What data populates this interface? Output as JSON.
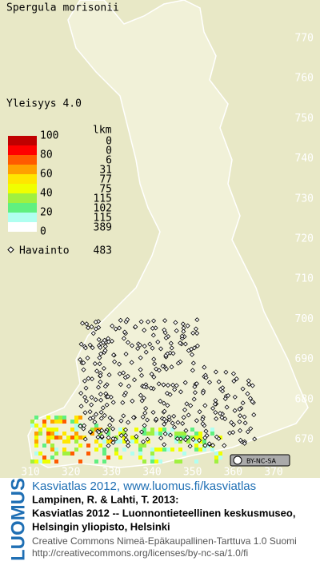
{
  "title": "Spergula morisonii",
  "legend": {
    "frequency_label": "Yleisyys  4.0",
    "scale_labels": [
      100,
      80,
      60,
      40,
      20,
      0
    ],
    "count_header": "lkm",
    "counts": [
      0,
      0,
      6,
      31,
      77,
      75,
      115,
      102,
      115,
      389
    ],
    "colors": [
      "#c00000",
      "#ff0000",
      "#ff5a00",
      "#ffa000",
      "#ffe600",
      "#f0ff00",
      "#a0f040",
      "#60f080",
      "#b0fff0",
      "#ffffff"
    ],
    "observation_label": "Havainto",
    "observation_count": 483
  },
  "map": {
    "yticks": [
      770,
      760,
      750,
      740,
      730,
      720,
      710,
      700,
      690,
      680,
      670
    ],
    "xticks": [
      310,
      320,
      330,
      340,
      350,
      360,
      370
    ],
    "ylim": [
      670,
      770
    ],
    "xlim": [
      310,
      370
    ],
    "license_badge": "BY-NC-SA"
  },
  "footer": {
    "logo": "LUOMUS",
    "atlas": "Kasviatlas 2012, www.luomus.fi/kasviatlas",
    "citation": [
      "Lampinen, R. & Lahti, T. 2013:",
      "Kasviatlas 2012 -- Luonnontieteellinen keskusmuseo,",
      "Helsingin yliopisto, Helsinki"
    ],
    "license": "Creative Commons Nimeä-Epäkaupallinen-Tarttuva 1.0 Suomi",
    "license_url": "http://creativecommons.org/licenses/by-nc-sa/1.0/fi"
  }
}
